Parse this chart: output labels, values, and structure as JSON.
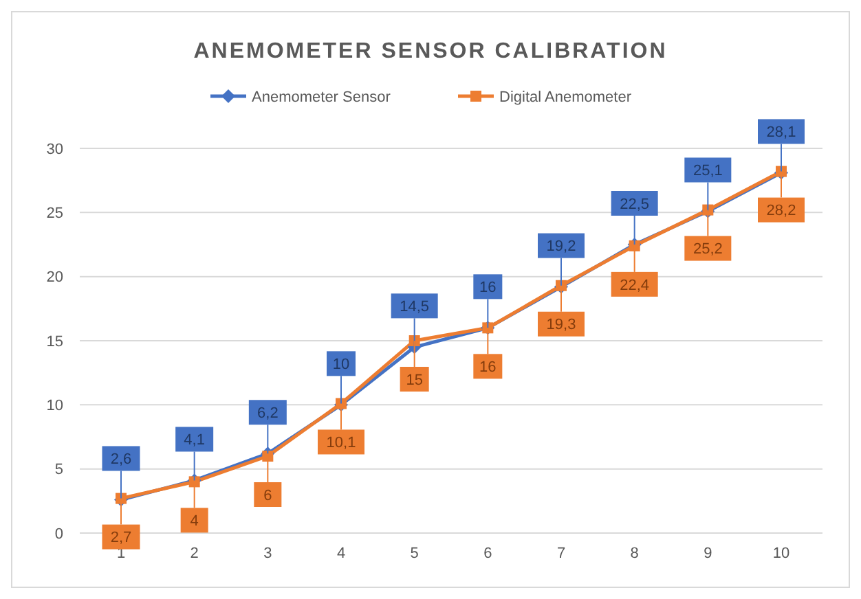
{
  "chart_data": {
    "type": "line",
    "title": "ANEMOMETER SENSOR CALIBRATION",
    "categories": [
      "1",
      "2",
      "3",
      "4",
      "5",
      "6",
      "7",
      "8",
      "9",
      "10"
    ],
    "series": [
      {
        "name": "Anemometer Sensor",
        "color": "#4472c4",
        "marker": "diamond",
        "values": [
          2.6,
          4.1,
          6.2,
          10,
          14.5,
          16,
          19.2,
          22.5,
          25.1,
          28.1
        ],
        "value_labels": [
          "2,6",
          "4,1",
          "6,2",
          "10",
          "14,5",
          "16",
          "19,2",
          "22,5",
          "25,1",
          "28,1"
        ]
      },
      {
        "name": "Digital Anemometer",
        "color": "#ed7d31",
        "marker": "square",
        "values": [
          2.7,
          4,
          6,
          10.1,
          15,
          16,
          19.3,
          22.4,
          25.2,
          28.2
        ],
        "value_labels": [
          "2,7",
          "4",
          "6",
          "10,1",
          "15",
          "16",
          "19,3",
          "22,4",
          "25,2",
          "28,2"
        ]
      }
    ],
    "ylim": [
      0,
      30
    ],
    "yticks": [
      0,
      5,
      10,
      15,
      20,
      25,
      30
    ],
    "grid": "y",
    "legend": "top",
    "line_style": "solid"
  }
}
